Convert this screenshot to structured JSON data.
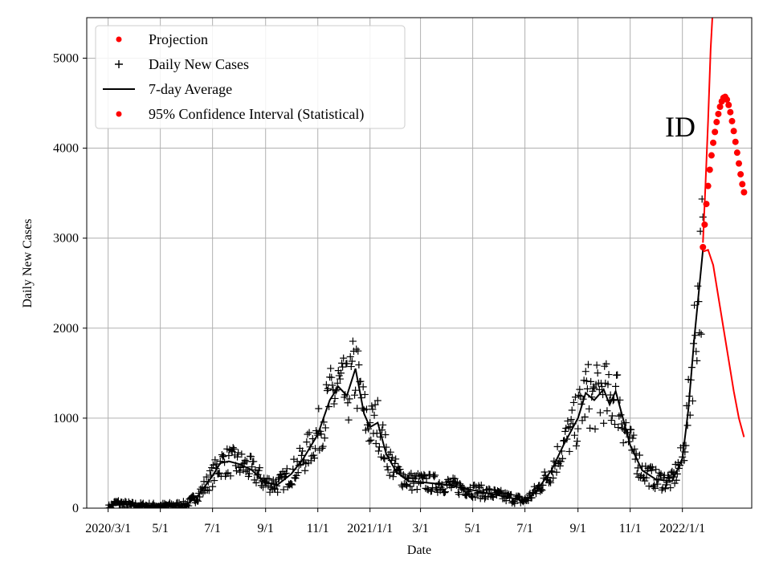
{
  "chart_data": {
    "type": "scatter",
    "title": "",
    "xlabel": "Date",
    "ylabel": "Daily New Cases",
    "annotation": "ID",
    "grid": true,
    "legend_position": "top-left",
    "xlim": [
      "2020-02-05",
      "2022-03-23"
    ],
    "ylim": [
      0,
      5450
    ],
    "x_ticks": [
      "2020-03-01",
      "2020-05-01",
      "2020-07-01",
      "2020-09-01",
      "2020-11-01",
      "2021-01-01",
      "2021-03-01",
      "2021-05-01",
      "2021-07-01",
      "2021-09-01",
      "2021-11-01",
      "2022-01-01"
    ],
    "x_tick_labels": [
      "2020/3/1",
      "5/1",
      "7/1",
      "9/1",
      "11/1",
      "2021/1/1",
      "3/1",
      "5/1",
      "7/1",
      "9/1",
      "11/1",
      "2022/1/1"
    ],
    "y_ticks": [
      0,
      1000,
      2000,
      3000,
      4000,
      5000
    ],
    "y_tick_labels": [
      "0",
      "1000",
      "2000",
      "3000",
      "4000",
      "5000"
    ],
    "legend": [
      {
        "label": "Projection",
        "marker": "dot",
        "color": "#ff0000"
      },
      {
        "label": "Daily New Cases",
        "marker": "plus",
        "color": "#000000"
      },
      {
        "label": "7-day Average",
        "marker": "line",
        "color": "#000000"
      },
      {
        "label": "95% Confidence Interval (Statistical)",
        "marker": "dot",
        "color": "#ff0000"
      }
    ],
    "series": [
      {
        "name": "7-day Average",
        "kind": "line",
        "color": "#000000",
        "points": [
          [
            "2020-03-01",
            5
          ],
          [
            "2020-03-10",
            60
          ],
          [
            "2020-03-20",
            45
          ],
          [
            "2020-04-01",
            30
          ],
          [
            "2020-05-01",
            25
          ],
          [
            "2020-06-01",
            40
          ],
          [
            "2020-06-15",
            150
          ],
          [
            "2020-07-01",
            360
          ],
          [
            "2020-07-10",
            500
          ],
          [
            "2020-07-20",
            520
          ],
          [
            "2020-08-01",
            490
          ],
          [
            "2020-08-15",
            430
          ],
          [
            "2020-09-01",
            280
          ],
          [
            "2020-09-15",
            260
          ],
          [
            "2020-10-01",
            380
          ],
          [
            "2020-10-15",
            550
          ],
          [
            "2020-11-01",
            820
          ],
          [
            "2020-11-15",
            1200
          ],
          [
            "2020-11-25",
            1350
          ],
          [
            "2020-12-05",
            1250
          ],
          [
            "2020-12-15",
            1550
          ],
          [
            "2020-12-25",
            1050
          ],
          [
            "2021-01-01",
            900
          ],
          [
            "2021-01-10",
            950
          ],
          [
            "2021-01-20",
            600
          ],
          [
            "2021-02-01",
            400
          ],
          [
            "2021-02-15",
            300
          ],
          [
            "2021-03-01",
            290
          ],
          [
            "2021-04-01",
            260
          ],
          [
            "2021-05-01",
            200
          ],
          [
            "2021-06-01",
            140
          ],
          [
            "2021-07-01",
            80
          ],
          [
            "2021-07-15",
            200
          ],
          [
            "2021-08-01",
            420
          ],
          [
            "2021-08-15",
            700
          ],
          [
            "2021-09-01",
            1000
          ],
          [
            "2021-09-10",
            1280
          ],
          [
            "2021-09-20",
            1200
          ],
          [
            "2021-10-01",
            1320
          ],
          [
            "2021-10-08",
            1150
          ],
          [
            "2021-10-15",
            1300
          ],
          [
            "2021-11-01",
            700
          ],
          [
            "2021-11-15",
            420
          ],
          [
            "2021-12-01",
            320
          ],
          [
            "2021-12-20",
            300
          ],
          [
            "2022-01-01",
            550
          ],
          [
            "2022-01-08",
            1100
          ],
          [
            "2022-01-15",
            1900
          ],
          [
            "2022-01-25",
            2870
          ]
        ]
      },
      {
        "name": "Projection",
        "kind": "dots",
        "color": "#ff0000",
        "points": [
          [
            "2022-01-25",
            2900
          ],
          [
            "2022-01-27",
            3150
          ],
          [
            "2022-01-29",
            3380
          ],
          [
            "2022-01-31",
            3580
          ],
          [
            "2022-02-02",
            3760
          ],
          [
            "2022-02-04",
            3920
          ],
          [
            "2022-02-06",
            4060
          ],
          [
            "2022-02-08",
            4180
          ],
          [
            "2022-02-10",
            4290
          ],
          [
            "2022-02-12",
            4380
          ],
          [
            "2022-02-14",
            4460
          ],
          [
            "2022-02-16",
            4520
          ],
          [
            "2022-02-18",
            4560
          ],
          [
            "2022-02-20",
            4570
          ],
          [
            "2022-02-22",
            4540
          ],
          [
            "2022-02-24",
            4480
          ],
          [
            "2022-02-26",
            4400
          ],
          [
            "2022-02-28",
            4300
          ],
          [
            "2022-03-02",
            4190
          ],
          [
            "2022-03-04",
            4070
          ],
          [
            "2022-03-06",
            3950
          ],
          [
            "2022-03-08",
            3830
          ],
          [
            "2022-03-10",
            3710
          ],
          [
            "2022-03-12",
            3600
          ],
          [
            "2022-03-14",
            3510
          ]
        ]
      },
      {
        "name": "95% Confidence Interval (Statistical)",
        "kind": "band",
        "color": "#ff0000",
        "upper": [
          [
            "2022-01-25",
            2950
          ],
          [
            "2022-01-28",
            3600
          ],
          [
            "2022-01-31",
            4300
          ],
          [
            "2022-02-03",
            5100
          ],
          [
            "2022-02-05",
            5450
          ]
        ],
        "lower": [
          [
            "2022-01-25",
            2850
          ],
          [
            "2022-01-31",
            2870
          ],
          [
            "2022-02-06",
            2700
          ],
          [
            "2022-02-12",
            2350
          ],
          [
            "2022-02-18",
            2000
          ],
          [
            "2022-02-24",
            1650
          ],
          [
            "2022-03-02",
            1300
          ],
          [
            "2022-03-08",
            1000
          ],
          [
            "2022-03-14",
            790
          ]
        ]
      }
    ]
  }
}
